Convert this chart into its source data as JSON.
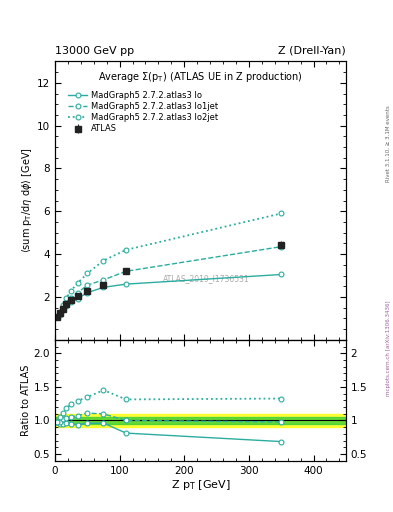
{
  "title_top_left": "13000 GeV pp",
  "title_top_right": "Z (Drell-Yan)",
  "main_title": "Average Σ(p_{T}) (ATLAS UE in Z production)",
  "ylabel_main": "<sum p_{T}/dη dφ> [GeV]",
  "ylabel_ratio": "Ratio to ATLAS",
  "xlabel": "Z p_{T} [GeV]",
  "right_label": "mcplots.cern.ch [arXiv:1306.3436]",
  "right_label2": "Rivet 3.1.10, ≥ 3.1M events",
  "watermark": "ATLAS_2019_I1736531",
  "ylim_main": [
    0,
    13
  ],
  "ylim_ratio": [
    0.4,
    2.2
  ],
  "yticks_main": [
    2,
    4,
    6,
    8,
    10,
    12
  ],
  "yticks_ratio": [
    0.5,
    1.0,
    1.5,
    2.0
  ],
  "xlim": [
    0,
    450
  ],
  "xticks": [
    0,
    100,
    200,
    300,
    400
  ],
  "atlas_x": [
    2.5,
    7.5,
    12.5,
    17.5,
    25,
    35,
    50,
    75,
    110,
    350
  ],
  "atlas_y": [
    1.07,
    1.25,
    1.45,
    1.65,
    1.85,
    2.05,
    2.3,
    2.55,
    3.2,
    4.45
  ],
  "atlas_yerr": [
    0.05,
    0.05,
    0.05,
    0.05,
    0.05,
    0.06,
    0.07,
    0.08,
    0.1,
    0.15
  ],
  "lo_x": [
    2.5,
    7.5,
    12.5,
    17.5,
    25,
    35,
    50,
    75,
    110,
    350
  ],
  "lo_y": [
    1.05,
    1.18,
    1.38,
    1.58,
    1.75,
    1.92,
    2.2,
    2.45,
    2.6,
    3.05
  ],
  "lo1jet_x": [
    2.5,
    7.5,
    12.5,
    17.5,
    25,
    35,
    50,
    75,
    110,
    350
  ],
  "lo1jet_y": [
    1.05,
    1.22,
    1.48,
    1.72,
    1.95,
    2.2,
    2.55,
    2.8,
    3.2,
    4.35
  ],
  "lo2jet_x": [
    2.5,
    7.5,
    12.5,
    17.5,
    25,
    35,
    50,
    75,
    110,
    350
  ],
  "lo2jet_y": [
    1.05,
    1.32,
    1.62,
    1.95,
    2.3,
    2.65,
    3.1,
    3.7,
    4.2,
    5.9
  ],
  "ratio_lo_y": [
    0.98,
    0.945,
    0.952,
    0.958,
    0.945,
    0.937,
    0.957,
    0.961,
    0.812,
    0.686
  ],
  "ratio_lo1jet_y": [
    0.98,
    0.978,
    1.021,
    1.042,
    1.054,
    1.073,
    1.109,
    1.098,
    1.0,
    0.978
  ],
  "ratio_lo2jet_y": [
    0.982,
    1.056,
    1.117,
    1.182,
    1.243,
    1.293,
    1.348,
    1.451,
    1.313,
    1.326
  ],
  "color_teal": "#2aada0",
  "color_atlas": "#222222",
  "band_green": [
    0.95,
    1.05
  ],
  "band_yellow": [
    0.9,
    1.1
  ]
}
